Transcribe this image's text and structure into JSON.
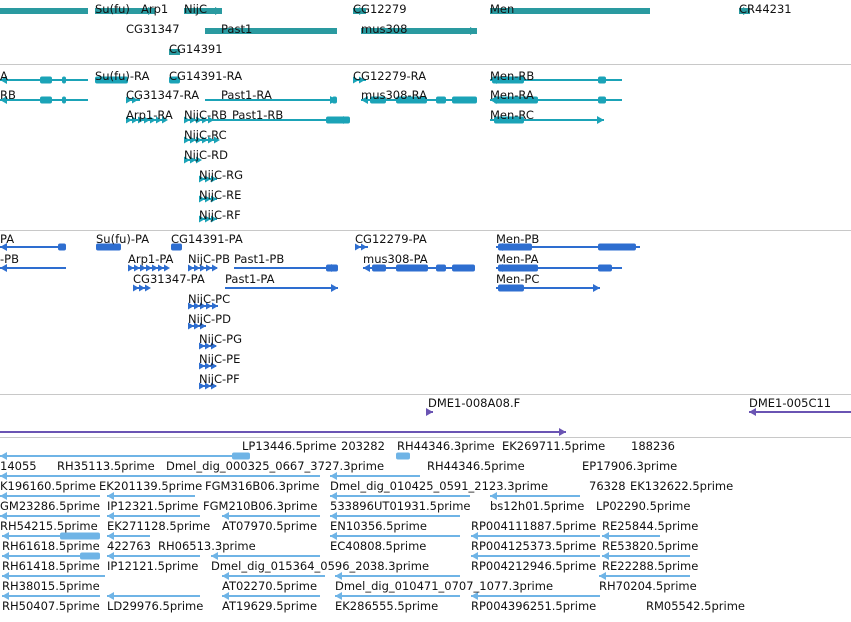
{
  "colors": {
    "gene": "#2a9aa0",
    "transcript": "#1ba3b7",
    "protein": "#2e6ed0",
    "clone": "#6a54b3",
    "est": "#6fb4e6",
    "separator": "#c8c8c8"
  },
  "tracks": [
    {
      "name": "genes",
      "color_key": "gene",
      "labels": [
        "Su(fu)",
        "Arp1",
        "NijC",
        "CG12279",
        "Men",
        "CR44231",
        "CG31347",
        "Past1",
        "mus308",
        "CG14391"
      ]
    },
    {
      "name": "transcripts",
      "color_key": "transcript",
      "labels": [
        "A",
        "Su(fu)-RA",
        "CG14391-RA",
        "CG12279-RA",
        "Men-RB",
        "RB",
        "CG31347-RA",
        "Past1-RA",
        "mus308-RA",
        "Men-RA",
        "Arp1-RA",
        "NijC-RB",
        "Past1-RB",
        "Men-RC",
        "NijC-RC",
        "NijC-RD",
        "NijC-RG",
        "NijC-RE",
        "NijC-RF"
      ]
    },
    {
      "name": "proteins",
      "color_key": "protein",
      "labels": [
        "PA",
        "Su(fu)-PA",
        "CG14391-PA",
        "CG12279-PA",
        "Men-PB",
        "-PB",
        "Arp1-PA",
        "NijC-PB",
        "Past1-PB",
        "mus308-PA",
        "Men-PA",
        "CG31347-PA",
        "Past1-PA",
        "Men-PC",
        "NijC-PC",
        "NijC-PD",
        "NijC-PG",
        "NijC-PE",
        "NijC-PF"
      ]
    },
    {
      "name": "clones",
      "color_key": "clone",
      "labels": [
        "DME1-008A08.F",
        "DME1-005C11"
      ]
    },
    {
      "name": "ests",
      "color_key": "est",
      "labels": [
        "LP13446.5prime",
        "203282",
        "RH44346.3prime",
        "EK269711.5prime",
        "188236",
        "14055",
        "RH35113.5prime",
        "Dmel_dig_000325_0667_3727.3prime",
        "RH44346.5prime",
        "EP17906.3prime",
        "K196160.5prime",
        "EK201139.5prime",
        "FGM316B06.3prime",
        "Dmel_dig_010425_0591_2123.3prime",
        "76328",
        "EK132622.5prime",
        "GM23286.5prime",
        "IP12321.5prime",
        "FGM210B06.3prime",
        "533896",
        "UT01931.5prime",
        "bs12h01.5prime",
        "LP02290.5prime",
        "RH54215.5prime",
        "EK271128.5prime",
        "AT07970.5prime",
        "EN10356.5prime",
        "RP004111887.5prime",
        "RE25844.5prime",
        "RH61618.5prime",
        "422763",
        "RH06513.3prime",
        "EC40808.5prime",
        "RP004125373.5prime",
        "RE53820.5prime",
        "RH61418.5prime",
        "IP12121.5prime",
        "Dmel_dig_015364_0596_2038.3prime",
        "RP004212946.5prime",
        "RE22288.5prime",
        "RH38015.5prime",
        "AT02270.5prime",
        "Dmel_dig_010471_0707_1077.3prime",
        "RH70204.5prime",
        "RH50407.5prime",
        "LD29976.5prime",
        "AT19629.5prime",
        "EK286555.5prime",
        "RP004396251.5prime",
        "RM05542.5prime"
      ]
    }
  ]
}
